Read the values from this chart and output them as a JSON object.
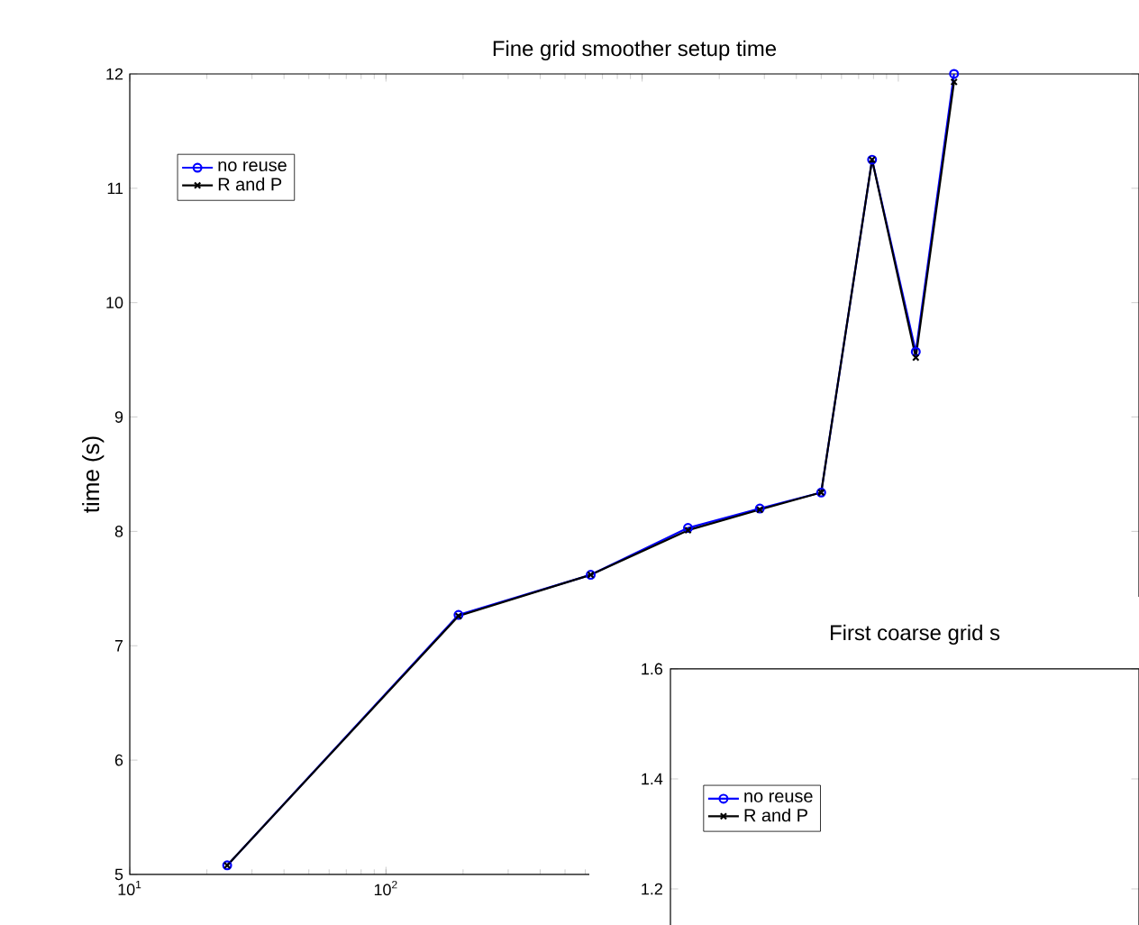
{
  "chart_data": [
    {
      "type": "line",
      "title": "Fine grid smoother setup time",
      "ylabel": "time (s)",
      "log": "x",
      "legend": "top left",
      "xlim": [
        10,
        87000
      ],
      "ylim": [
        5,
        12
      ],
      "xticks": [
        {
          "value": 10,
          "label": "10$^{1}$"
        },
        {
          "value": 100,
          "label": "10$^{2}$"
        },
        {
          "value": 1000,
          "label": null
        },
        {
          "value": 10000,
          "label": null
        }
      ],
      "yticks": [
        5,
        6,
        7,
        8,
        9,
        10,
        11,
        12
      ],
      "x": [
        24,
        192,
        630,
        1510,
        2880,
        5000,
        7900,
        11700,
        16500
      ],
      "series": [
        {
          "name": "no reuse",
          "color": "#0000ff",
          "marker": "circle",
          "values": [
            5.08,
            7.27,
            7.62,
            8.03,
            8.2,
            8.34,
            11.25,
            9.57,
            12.0
          ]
        },
        {
          "name": "R and P",
          "color": "#000000",
          "marker": "cross",
          "values": [
            5.08,
            7.26,
            7.62,
            8.01,
            8.19,
            8.34,
            11.25,
            9.52,
            11.93
          ]
        }
      ]
    },
    {
      "type": "other",
      "title": "First coarse grid s",
      "legend": "top left",
      "annotations": [
        "1.6",
        "1.4",
        "1.2"
      ],
      "series": [
        {
          "name": "no reuse",
          "color": "#0000ff",
          "marker": "circle"
        },
        {
          "name": "R and P",
          "color": "#000000",
          "marker": "cross"
        }
      ]
    }
  ]
}
